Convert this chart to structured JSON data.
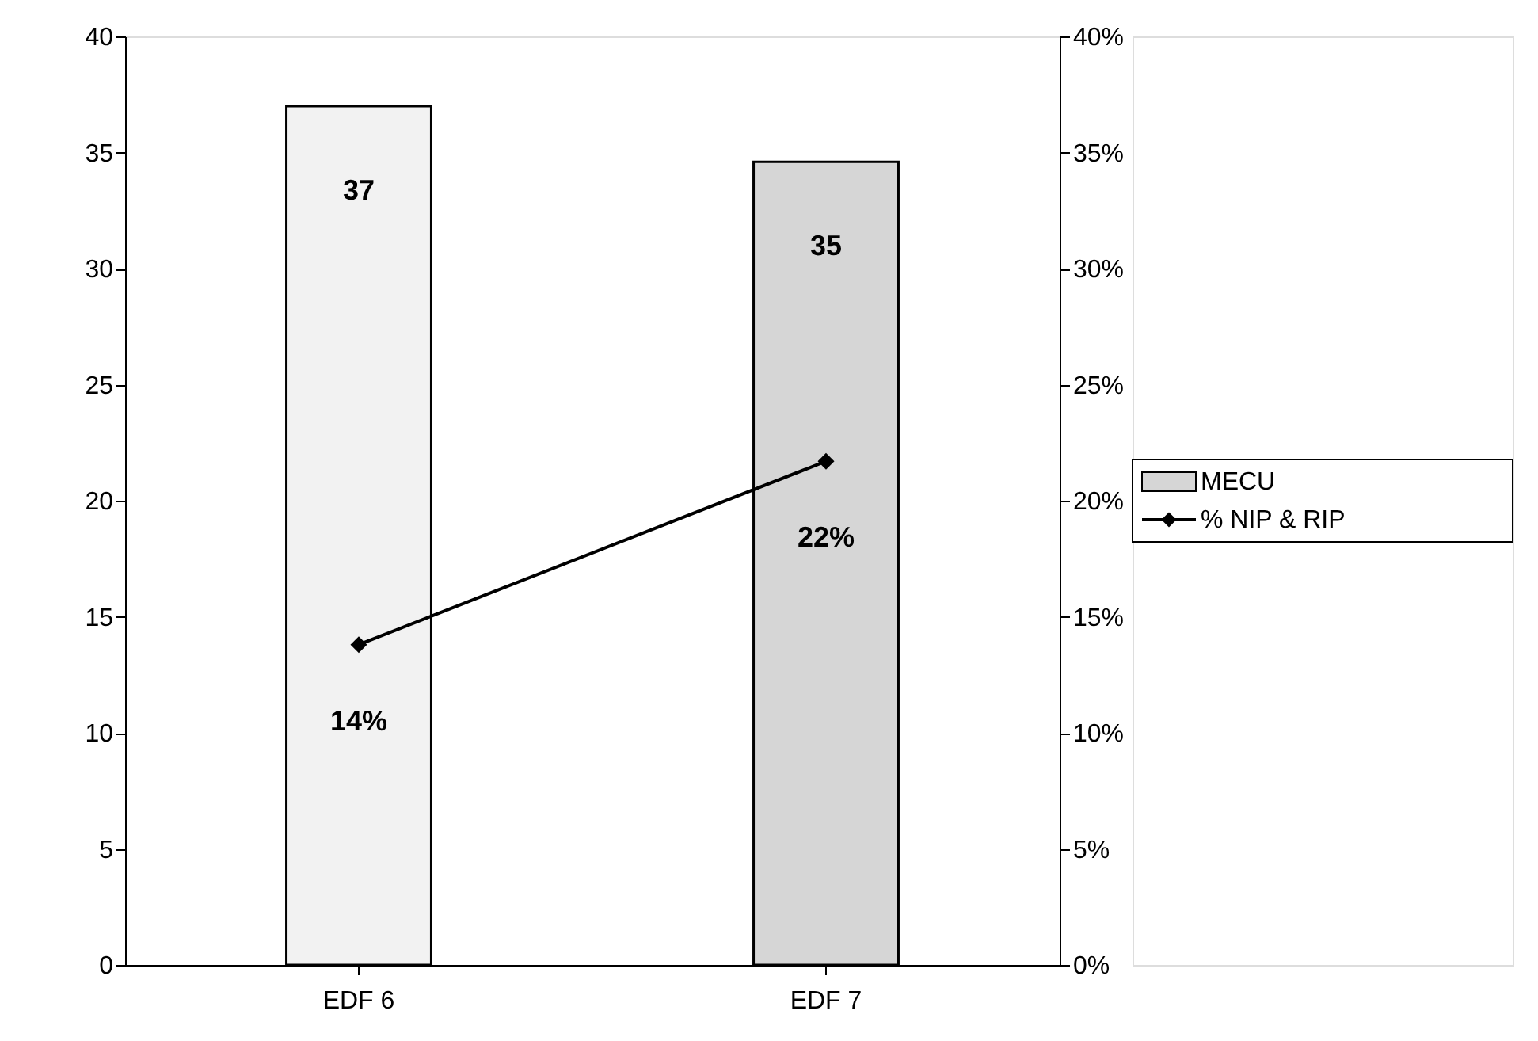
{
  "chart_data": {
    "type": "bar",
    "categories": [
      "EDF 6",
      "EDF 7"
    ],
    "series": [
      {
        "name": "MECU",
        "colors": [
          "#f2f2f2",
          "#d6d6d6"
        ],
        "values": [
          37,
          34.6
        ],
        "value_labels": [
          "37",
          "35"
        ]
      },
      {
        "name": "% NIP & RIP",
        "type": "line",
        "axis": "y2",
        "color": "#000000",
        "values": [
          13.8,
          21.7
        ],
        "value_labels": [
          "14%",
          "22%"
        ]
      }
    ],
    "ylim": [
      0,
      40
    ],
    "yticks": [
      0,
      5,
      10,
      15,
      20,
      25,
      30,
      35,
      40
    ],
    "y2lim": [
      0,
      40
    ],
    "y2ticks": [
      {
        "value": 0,
        "label": "0%"
      },
      {
        "value": 5,
        "label": "5%"
      },
      {
        "value": 10,
        "label": "10%"
      },
      {
        "value": 15,
        "label": "15%"
      },
      {
        "value": 20,
        "label": "20%"
      },
      {
        "value": 25,
        "label": "25%"
      },
      {
        "value": 30,
        "label": "30%"
      },
      {
        "value": 35,
        "label": "35%"
      },
      {
        "value": 40,
        "label": "40%"
      }
    ],
    "marker": "diamond",
    "line_style": "solid",
    "grid": false,
    "legend": "right"
  }
}
